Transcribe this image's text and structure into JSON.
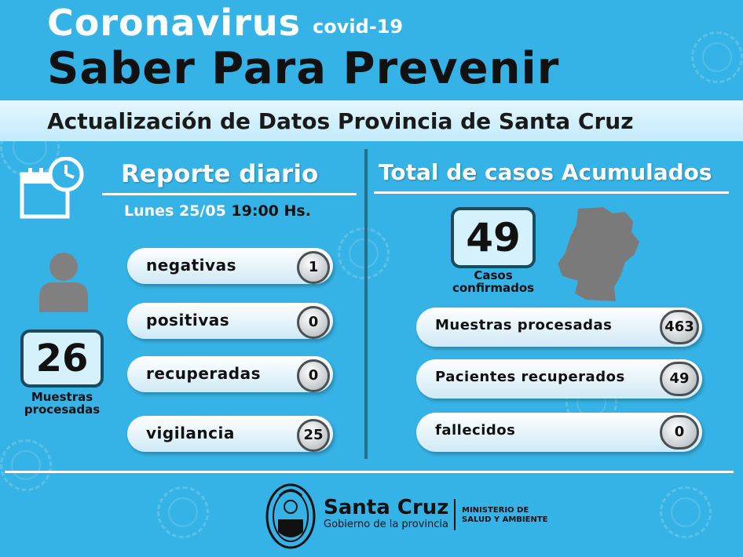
{
  "header": {
    "title": "Coronavirus",
    "subtitle": "covid-19",
    "slogan": "Saber Para Prevenir",
    "banner": "Actualización de Datos Provincia de Santa Cruz"
  },
  "daily": {
    "heading": "Reporte diario",
    "date": "Lunes 25/05",
    "time": "19:00 Hs.",
    "samples_value": "26",
    "samples_label_1": "Muestras",
    "samples_label_2": "procesadas",
    "rows": [
      {
        "label": "negativas",
        "value": "1"
      },
      {
        "label": "positivas",
        "value": "0"
      },
      {
        "label": "recuperadas",
        "value": "0"
      },
      {
        "label": "vigilancia",
        "value": "25"
      }
    ]
  },
  "cumulative": {
    "heading": "Total de casos Acumulados",
    "confirmed_value": "49",
    "confirmed_label_1": "Casos",
    "confirmed_label_2": "confirmados",
    "rows": [
      {
        "label": "Muestras procesadas",
        "value": "463"
      },
      {
        "label": "Pacientes recuperados",
        "value": "49"
      },
      {
        "label": "fallecidos",
        "value": "0"
      }
    ]
  },
  "footer": {
    "province": "Santa Cruz",
    "government": "Gobierno de la provincia",
    "ministry_1": "MINISTERIO DE",
    "ministry_2": "SALUD Y AMBIENTE"
  },
  "icons": {
    "calendar": "calendar-clock-icon",
    "person": "person-icon",
    "map": "santa-cruz-map",
    "logo": "province-coat-of-arms"
  },
  "colors": {
    "background": "#36b3e6",
    "banner": "#d8f2fc",
    "dark": "#111111"
  }
}
